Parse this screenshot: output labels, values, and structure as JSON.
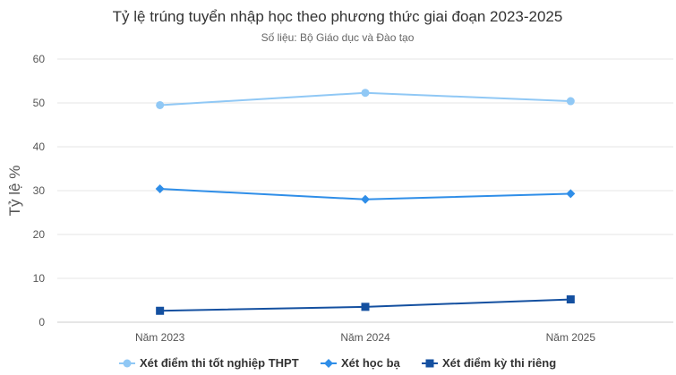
{
  "chart_data": {
    "type": "line",
    "title": "Tỷ lệ trúng tuyển nhập học theo phương thức giai đoạn 2023-2025",
    "subtitle": "Số liệu: Bộ Giáo dục và Đào tạo",
    "xlabel": "",
    "ylabel": "Tỷ lệ %",
    "ylim": [
      0,
      60
    ],
    "yticks": [
      "0",
      "10",
      "20",
      "30",
      "40",
      "50",
      "60"
    ],
    "categories": [
      "Năm 2023",
      "Năm 2024",
      "Năm 2025"
    ],
    "grid": true,
    "legend_position": "bottom",
    "series": [
      {
        "name": "Xét điểm thi tốt nghiệp THPT",
        "values": [
          49.5,
          52.3,
          50.4
        ],
        "color": "#90c8f5",
        "marker": "circle"
      },
      {
        "name": "Xét học bạ",
        "values": [
          30.4,
          28.0,
          29.3
        ],
        "color": "#2f8ee8",
        "marker": "diamond"
      },
      {
        "name": "Xét điểm kỳ thi riêng",
        "values": [
          2.6,
          3.5,
          5.2
        ],
        "color": "#1450a0",
        "marker": "square"
      }
    ]
  }
}
